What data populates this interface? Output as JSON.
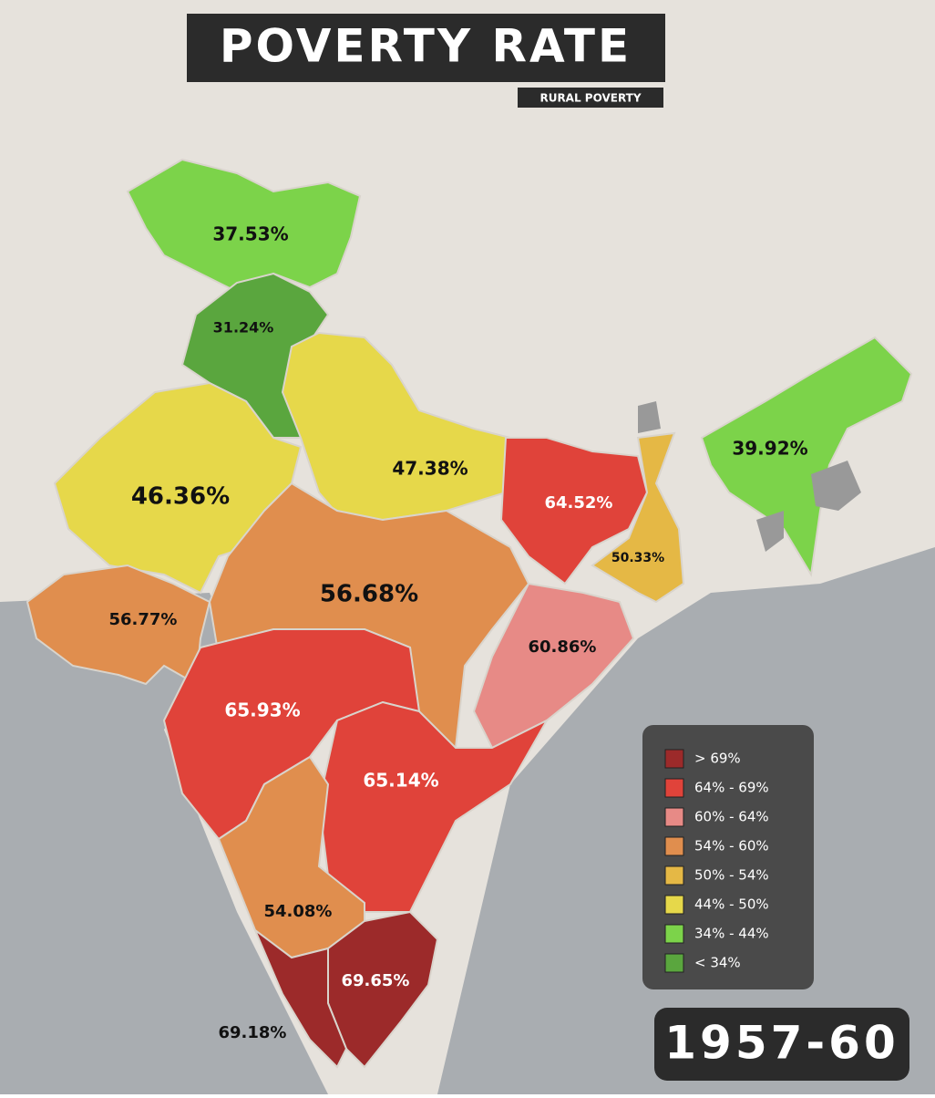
{
  "header": {
    "title": "POVERTY RATE",
    "subtitle": "RURAL POVERTY"
  },
  "regions": [
    {
      "label": "37.53%"
    },
    {
      "label": "31.24%"
    },
    {
      "label": "46.36%"
    },
    {
      "label": "47.38%"
    },
    {
      "label": "64.52%"
    },
    {
      "label": "39.92%"
    },
    {
      "label": "50.33%"
    },
    {
      "label": "56.77%"
    },
    {
      "label": "56.68%"
    },
    {
      "label": "60.86%"
    },
    {
      "label": "65.93%"
    },
    {
      "label": "65.14%"
    },
    {
      "label": "54.08%"
    },
    {
      "label": "69.65%"
    },
    {
      "label": "69.18%"
    }
  ],
  "legend": {
    "items": [
      "> 69%",
      "64% - 69%",
      "60% - 64%",
      "54% - 60%",
      "50% - 54%",
      "44% - 50%",
      "34% - 44%",
      "< 34%"
    ]
  },
  "period": "1957-60"
}
